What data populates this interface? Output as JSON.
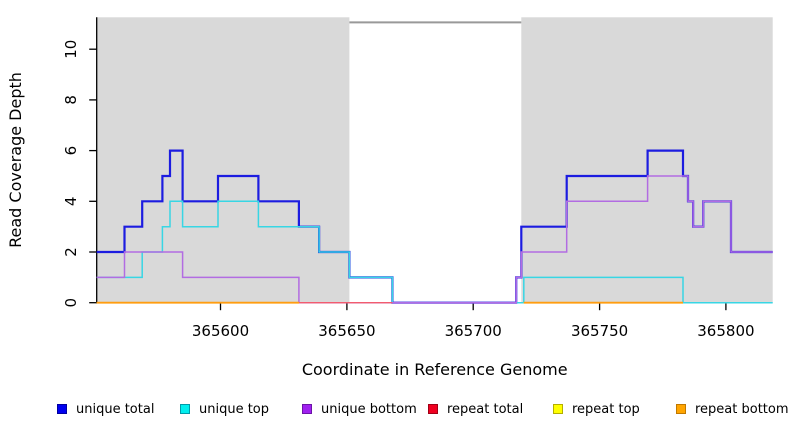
{
  "chart_data": {
    "type": "line",
    "subtype": "step-coverage-plot",
    "title": "",
    "x_axis": {
      "label": "Coordinate in Reference Genome",
      "ticks": [
        365600,
        365650,
        365700,
        365750,
        365800
      ],
      "range": [
        365551,
        365818.5
      ],
      "grid": false
    },
    "y_axis": {
      "label": "Read Coverage Depth",
      "ticks": [
        0,
        2,
        4,
        6,
        8,
        10
      ],
      "range": [
        0,
        11.26
      ],
      "grid": false
    },
    "shade_color": "#d9d9d9",
    "shaded_regions": [
      {
        "x_start": 365551,
        "x_end": 365651
      },
      {
        "x_start": 365719,
        "x_end": 365818.5
      }
    ],
    "gap_top_line": {
      "x_start": 365651,
      "x_end": 365719,
      "y_value": 11.06,
      "color": "#999999"
    },
    "legend_position": "bottom",
    "series": [
      {
        "label": "unique total",
        "line_color": "#1c1ce0",
        "line_width": 2.2,
        "swatch_fill": "#0000f0",
        "swatch_border": "#0000a0",
        "segments": [
          [
            [
              365551,
              2
            ],
            [
              365562,
              3
            ],
            [
              365569,
              4
            ],
            [
              365577,
              5
            ],
            [
              365580,
              6
            ],
            [
              365585,
              4
            ],
            [
              365599,
              5
            ],
            [
              365615,
              4
            ],
            [
              365631,
              3
            ],
            [
              365639,
              2
            ],
            [
              365651,
              1
            ],
            [
              365668,
              0
            ],
            [
              365717,
              1
            ],
            [
              365719,
              3
            ],
            [
              365737,
              5
            ],
            [
              365769,
              6
            ],
            [
              365783,
              5
            ],
            [
              365785,
              4
            ],
            [
              365787,
              3
            ],
            [
              365791,
              4
            ],
            [
              365802,
              2
            ],
            [
              365818.5,
              2
            ]
          ]
        ]
      },
      {
        "label": "unique top",
        "line_color": "#38d6e4",
        "line_width": 1.5,
        "swatch_fill": "#00eeee",
        "swatch_border": "#009aa8",
        "segments": [
          [
            [
              365551,
              1
            ],
            [
              365569,
              2
            ],
            [
              365577,
              3
            ],
            [
              365580,
              4
            ],
            [
              365585,
              3
            ],
            [
              365599,
              4
            ],
            [
              365615,
              3
            ],
            [
              365639,
              2
            ],
            [
              365651,
              1
            ],
            [
              365668,
              0
            ],
            [
              365720,
              1
            ],
            [
              365783,
              0
            ],
            [
              365818.5,
              0
            ]
          ]
        ]
      },
      {
        "label": "unique bottom",
        "line_color": "#b26ce2",
        "line_width": 1.5,
        "swatch_fill": "#a020f0",
        "swatch_border": "#6c14a8",
        "segments": [
          [
            [
              365551,
              1
            ],
            [
              365562,
              2
            ],
            [
              365585,
              1
            ],
            [
              365631,
              0
            ],
            [
              365717,
              1
            ],
            [
              365719,
              2
            ],
            [
              365737,
              4
            ],
            [
              365769,
              5
            ],
            [
              365785,
              4
            ],
            [
              365787,
              3
            ],
            [
              365791,
              4
            ],
            [
              365802,
              2
            ],
            [
              365818.5,
              2
            ]
          ]
        ]
      },
      {
        "label": "repeat total",
        "line_color": "#f25c6e",
        "line_width": 1.3,
        "swatch_fill": "#f00020",
        "swatch_border": "#a00016",
        "segments": [
          [
            [
              365551,
              0
            ],
            [
              365668,
              0
            ]
          ]
        ]
      },
      {
        "label": "repeat top",
        "line_color": "#ffee00",
        "line_width": 1.3,
        "swatch_fill": "#ffff00",
        "swatch_border": "#b4ae00",
        "segments": [
          [
            [
              365551,
              0
            ],
            [
              365631,
              0
            ]
          ],
          [
            [
              365720,
              0
            ],
            [
              365783,
              0
            ]
          ]
        ]
      },
      {
        "label": "repeat bottom",
        "line_color": "#ff9d10",
        "line_width": 1.8,
        "swatch_fill": "#ffa500",
        "swatch_border": "#c07800",
        "segments": [
          [
            [
              365551,
              0
            ],
            [
              365631,
              0
            ]
          ],
          [
            [
              365720,
              0
            ],
            [
              365783,
              0
            ]
          ]
        ]
      }
    ]
  }
}
